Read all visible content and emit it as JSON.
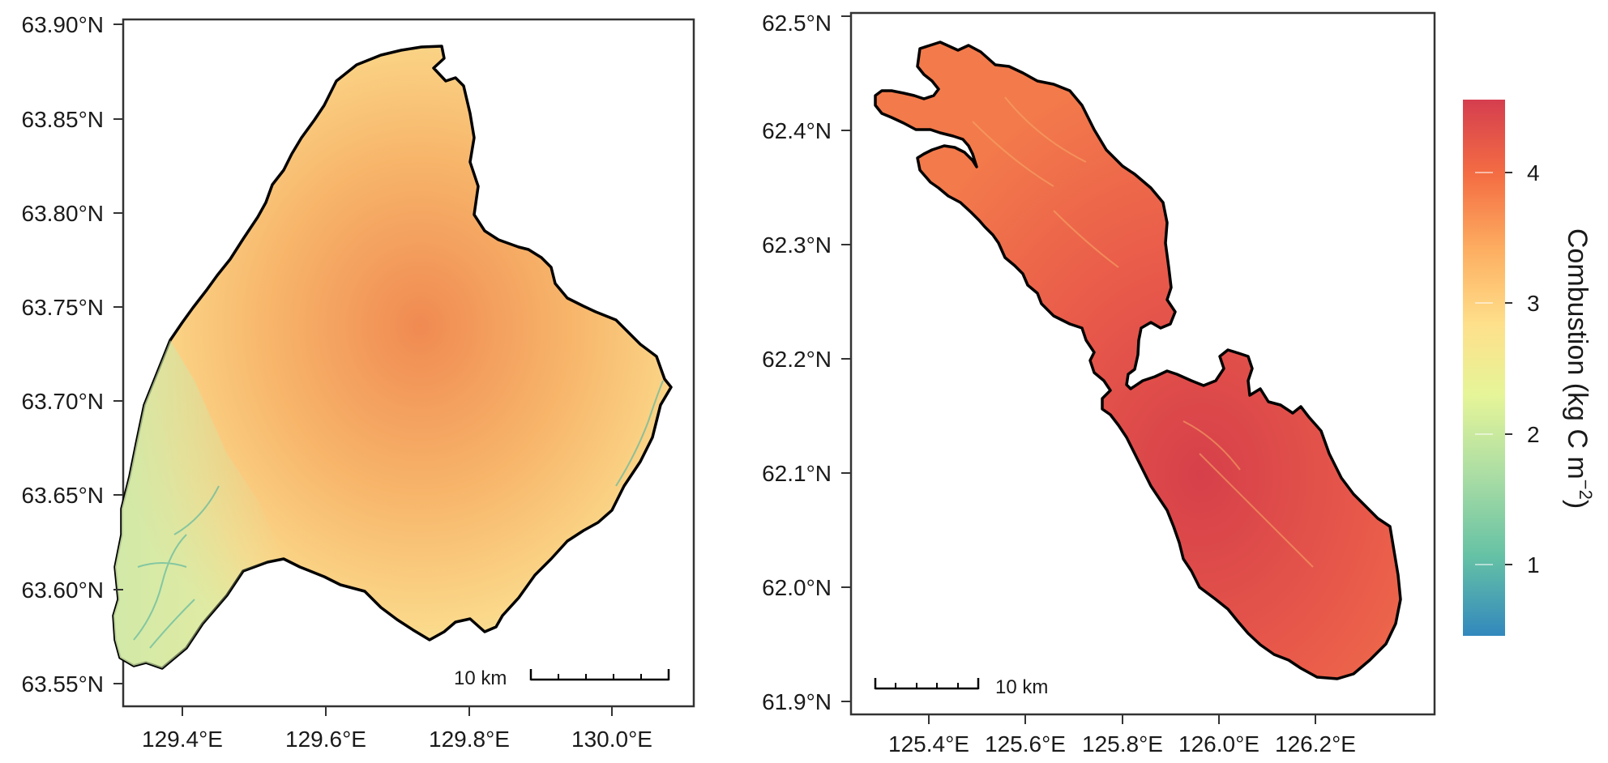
{
  "colors": {
    "scale_high": "#d53e4f",
    "scale_mid_high": "#f46d43",
    "scale_mid": "#fee08b",
    "scale_mid_low": "#abdda4",
    "scale_low": "#3288bd",
    "outline": "#000000"
  },
  "panels": [
    {
      "id": "left",
      "lat_ticks": [
        "63.90°N",
        "63.85°N",
        "63.80°N",
        "63.75°N",
        "63.70°N",
        "63.65°N",
        "63.60°N",
        "63.55°N"
      ],
      "lon_ticks": [
        "129.4°E",
        "129.6°E",
        "129.8°E",
        "130.0°E"
      ],
      "scale_bar_label": "10 km",
      "mean_combustion": 3.1
    },
    {
      "id": "right",
      "lat_ticks": [
        "62.5°N",
        "62.4°N",
        "62.3°N",
        "62.2°N",
        "62.1°N",
        "62.0°N",
        "61.9°N"
      ],
      "lon_ticks": [
        "125.4°E",
        "125.6°E",
        "125.8°E",
        "126.0°E",
        "126.2°E"
      ],
      "scale_bar_label": "10 km",
      "mean_combustion": 3.8
    }
  ],
  "colorbar": {
    "label_main": "Combustion (kg C m",
    "label_exponent": "−2",
    "label_close": ")",
    "ticks": [
      "1",
      "2",
      "3",
      "4"
    ],
    "range": [
      0.5,
      4.6
    ]
  }
}
